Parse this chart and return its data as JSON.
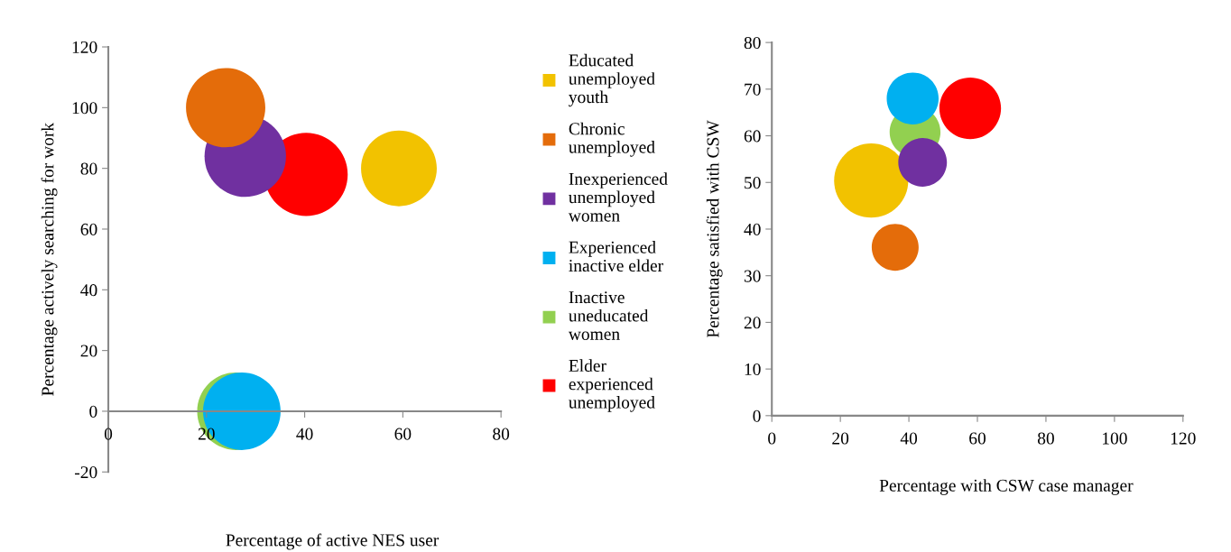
{
  "chart_data": [
    {
      "type": "bubble",
      "xlabel": "Percentage of active NES user",
      "ylabel": "Percentage actively searching for work",
      "xlim": [
        0,
        80
      ],
      "xticks": [
        0,
        20,
        40,
        60,
        80
      ],
      "ylim": [
        -20,
        120
      ],
      "yticks": [
        -20,
        0,
        20,
        40,
        60,
        80,
        100,
        120
      ],
      "grid": false,
      "legend": "right",
      "series": [
        {
          "name": "Educated unemployed youth",
          "color": "#f2c200",
          "x": [
            59.2
          ],
          "values": [
            80
          ],
          "sizes": [
            0.83
          ]
        },
        {
          "name": "Chronic unemployed",
          "color": "#e46c0a",
          "x": [
            23.9
          ],
          "values": [
            100
          ],
          "sizes": [
            0.91
          ]
        },
        {
          "name": "Inexperienced unemployed women",
          "color": "#7030a0",
          "x": [
            27.9
          ],
          "values": [
            84
          ],
          "sizes": [
            0.96
          ]
        },
        {
          "name": "Experienced inactive elder",
          "color": "#00b0f0",
          "x": [
            27.2
          ],
          "values": [
            0
          ],
          "sizes": [
            0.87
          ]
        },
        {
          "name": "Inactive uneducated women",
          "color": "#92d050",
          "x": [
            26
          ],
          "values": [
            0
          ],
          "sizes": [
            0.87
          ]
        },
        {
          "name": "Elder experienced unemployed",
          "color": "#ff0000",
          "x": [
            40.3
          ],
          "values": [
            78
          ],
          "sizes": [
            1
          ]
        }
      ]
    },
    {
      "type": "bubble",
      "xlabel": "Percentage with CSW case manager",
      "ylabel": "Percentage satisfied with CSW",
      "xlim": [
        0,
        120
      ],
      "xticks": [
        0,
        20,
        40,
        60,
        80,
        100,
        120
      ],
      "ylim": [
        0,
        80
      ],
      "yticks": [
        0,
        10,
        20,
        30,
        40,
        50,
        60,
        70,
        80
      ],
      "grid": false,
      "legend": false,
      "series": [
        {
          "color": "#f2c200",
          "x": [
            29
          ],
          "values": [
            50.4
          ],
          "sizes": [
            1
          ]
        },
        {
          "color": "#e46c0a",
          "x": [
            36
          ],
          "values": [
            36.1
          ],
          "sizes": [
            0.4
          ]
        },
        {
          "color": "#7030a0",
          "x": [
            44
          ],
          "values": [
            54.3
          ],
          "sizes": [
            0.43
          ]
        },
        {
          "color": "#00b0f0",
          "x": [
            41.1
          ],
          "values": [
            68
          ],
          "sizes": [
            0.49
          ]
        },
        {
          "color": "#92d050",
          "x": [
            41.8
          ],
          "values": [
            60.8
          ],
          "sizes": [
            0.47
          ]
        },
        {
          "color": "#ff0000",
          "x": [
            57.9
          ],
          "values": [
            65.9
          ],
          "sizes": [
            0.69
          ]
        }
      ]
    }
  ]
}
